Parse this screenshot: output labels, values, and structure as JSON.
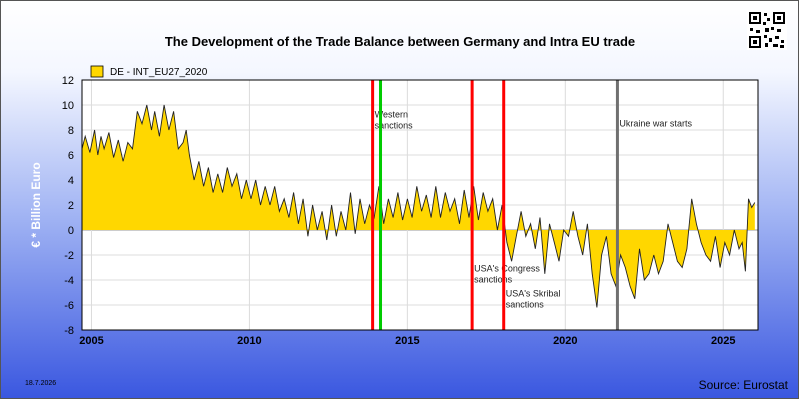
{
  "chart_data": {
    "type": "area",
    "title": "The Development of the Trade Balance between Germany and Intra EU trade",
    "ylabel": "€ * Billion Euro",
    "xlabel": "",
    "xlim": [
      2004.7,
      2026.1
    ],
    "ylim": [
      -8,
      12
    ],
    "y_ticks": [
      -8,
      -6,
      -4,
      -2,
      0,
      2,
      4,
      6,
      8,
      10,
      12
    ],
    "x_ticks": [
      2005,
      2010,
      2015,
      2020,
      2025
    ],
    "grid": true,
    "legend_position": "top-left",
    "series": [
      {
        "name": "DE - INT_EU27_2020",
        "color": "#ffd700",
        "x": [
          2004.7,
          2004.8,
          2004.95,
          2005.1,
          2005.2,
          2005.3,
          2005.4,
          2005.55,
          2005.7,
          2005.85,
          2006.0,
          2006.15,
          2006.3,
          2006.45,
          2006.6,
          2006.75,
          2006.9,
          2007.0,
          2007.15,
          2007.3,
          2007.45,
          2007.6,
          2007.75,
          2007.9,
          2008.0,
          2008.1,
          2008.25,
          2008.4,
          2008.55,
          2008.7,
          2008.85,
          2009.0,
          2009.15,
          2009.3,
          2009.45,
          2009.6,
          2009.75,
          2009.9,
          2010.05,
          2010.2,
          2010.35,
          2010.5,
          2010.65,
          2010.8,
          2010.95,
          2011.1,
          2011.25,
          2011.4,
          2011.55,
          2011.7,
          2011.85,
          2012.0,
          2012.15,
          2012.3,
          2012.45,
          2012.6,
          2012.75,
          2012.9,
          2013.05,
          2013.2,
          2013.35,
          2013.5,
          2013.65,
          2013.8,
          2013.95,
          2014.1,
          2014.25,
          2014.4,
          2014.55,
          2014.7,
          2014.85,
          2015.0,
          2015.15,
          2015.3,
          2015.45,
          2015.6,
          2015.75,
          2015.9,
          2016.05,
          2016.2,
          2016.35,
          2016.5,
          2016.65,
          2016.8,
          2016.95,
          2017.1,
          2017.25,
          2017.4,
          2017.55,
          2017.7,
          2017.85,
          2018.0,
          2018.15,
          2018.3,
          2018.45,
          2018.6,
          2018.75,
          2018.9,
          2019.05,
          2019.2,
          2019.35,
          2019.5,
          2019.65,
          2019.8,
          2019.95,
          2020.1,
          2020.25,
          2020.4,
          2020.55,
          2020.7,
          2020.85,
          2021.0,
          2021.15,
          2021.3,
          2021.45,
          2021.6,
          2021.75,
          2021.9,
          2022.05,
          2022.2,
          2022.35,
          2022.5,
          2022.65,
          2022.8,
          2022.95,
          2023.1,
          2023.25,
          2023.4,
          2023.55,
          2023.7,
          2023.85,
          2024.0,
          2024.15,
          2024.3,
          2024.45,
          2024.6,
          2024.75,
          2024.9,
          2025.05,
          2025.2,
          2025.35,
          2025.5,
          2025.6,
          2025.7,
          2025.8,
          2025.9,
          2026.0
        ],
        "values": [
          6.5,
          7.5,
          6.2,
          8.0,
          6.0,
          7.5,
          6.5,
          7.8,
          5.8,
          7.2,
          5.5,
          7.0,
          6.5,
          9.5,
          8.5,
          10.0,
          8.0,
          9.5,
          7.5,
          10.0,
          8.0,
          9.5,
          6.5,
          7.0,
          8.0,
          6.0,
          4.0,
          5.5,
          3.5,
          5.0,
          3.0,
          4.5,
          3.0,
          5.0,
          3.5,
          4.5,
          2.5,
          4.0,
          2.5,
          4.0,
          2.0,
          3.5,
          2.0,
          3.5,
          1.5,
          2.5,
          1.0,
          3.0,
          0.5,
          2.5,
          -0.5,
          2.0,
          0.0,
          1.5,
          -0.8,
          2.0,
          -0.5,
          1.5,
          0.0,
          3.0,
          -0.3,
          2.5,
          0.5,
          2.0,
          1.0,
          3.5,
          0.5,
          2.5,
          1.0,
          3.0,
          0.8,
          2.5,
          1.0,
          3.5,
          1.5,
          2.8,
          1.0,
          3.5,
          1.0,
          3.0,
          1.5,
          2.5,
          0.5,
          3.2,
          1.0,
          3.5,
          0.8,
          3.0,
          1.5,
          2.5,
          0.0,
          2.0,
          -1.0,
          -2.5,
          -0.5,
          1.5,
          -0.5,
          0.5,
          -1.5,
          1.0,
          -3.5,
          0.5,
          -1.0,
          -2.5,
          0.0,
          -0.5,
          1.5,
          -0.5,
          -2.0,
          0.5,
          -3.5,
          -6.2,
          -2.0,
          -0.5,
          -3.5,
          -4.5,
          -2.0,
          -3.0,
          -4.5,
          -5.5,
          -1.5,
          -4.0,
          -3.5,
          -2.0,
          -3.5,
          -2.5,
          0.5,
          -1.0,
          -2.5,
          -3.0,
          -1.5,
          2.5,
          0.5,
          -1.0,
          -2.0,
          -2.5,
          -0.5,
          -3.0,
          -1.0,
          -2.0,
          0.0,
          -1.5,
          -1.0,
          -3.3,
          2.5,
          1.8,
          2.2
        ]
      }
    ],
    "annotations": [
      {
        "x": 2013.9,
        "color": "#ff0000",
        "label": "Western\nsanctions",
        "label_y": 9.0
      },
      {
        "x": 2014.15,
        "color": "#00cc00",
        "label": "",
        "label_y": null
      },
      {
        "x": 2017.05,
        "color": "#ff0000",
        "label": "USA's Congress\nsanctions",
        "label_y": -3.3
      },
      {
        "x": 2018.05,
        "color": "#ff0000",
        "label": "USA's Skribal\nsanctions",
        "label_y": -5.3
      },
      {
        "x": 2021.65,
        "color": "#707070",
        "label": "Ukraine war starts",
        "label_y": 8.3
      }
    ],
    "date_stamp": "18.7.2026",
    "source": "Source: Eurostat"
  }
}
